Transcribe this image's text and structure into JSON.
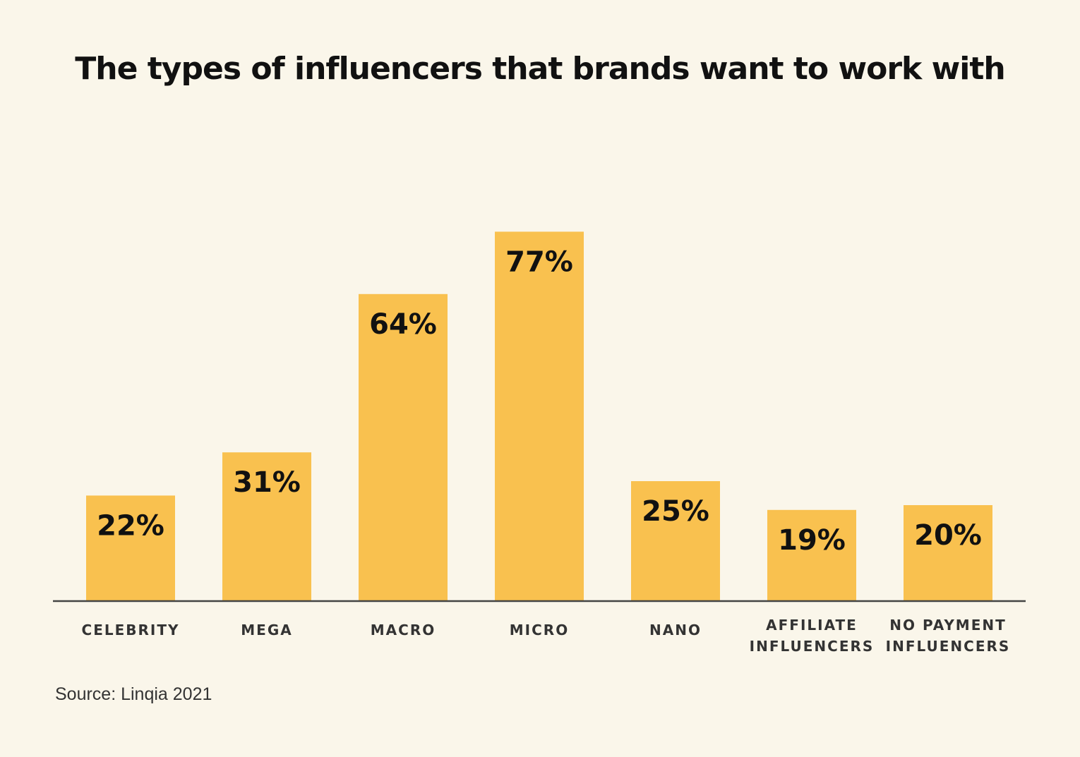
{
  "colors": {
    "background": "#FAF6EA",
    "bar": "#F9C14F",
    "axis": "#444444",
    "text": "#111111"
  },
  "chart_data": {
    "type": "bar",
    "title": "The types of influencers that brands want to work with",
    "categories": [
      [
        "CELEBRITY"
      ],
      [
        "MEGA"
      ],
      [
        "MACRO"
      ],
      [
        "MICRO"
      ],
      [
        "NANO"
      ],
      [
        "AFFILIATE",
        "INFLUENCERS"
      ],
      [
        "NO PAYMENT",
        "INFLUENCERS"
      ]
    ],
    "values": [
      22,
      31,
      64,
      77,
      25,
      19,
      20
    ],
    "value_labels": [
      "22%",
      "31%",
      "64%",
      "77%",
      "25%",
      "19%",
      "20%"
    ],
    "unit": "%",
    "xlabel": "",
    "ylabel": "",
    "ylim": [
      0,
      100
    ],
    "grid": false,
    "legend": "none",
    "source": "Source: Linqia 2021"
  }
}
